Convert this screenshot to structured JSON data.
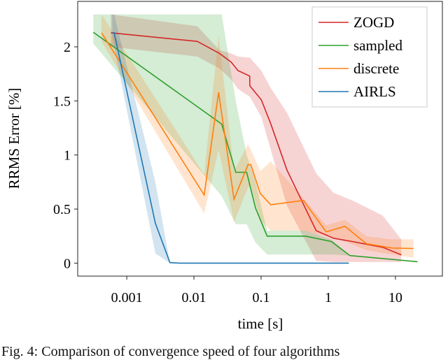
{
  "chart_data": {
    "type": "line",
    "title": "",
    "xlabel": "time [s]",
    "ylabel": "RRMS Error [%]",
    "xscale": "log",
    "xlim": [
      0.000186,
      50
    ],
    "ylim": [
      -0.12,
      2.42
    ],
    "xticks": [
      0.001,
      0.01,
      0.1,
      1,
      10
    ],
    "xtick_labels": [
      "0.001",
      "0.01",
      "0.1",
      "1",
      "10"
    ],
    "yticks": [
      0,
      0.5,
      1,
      1.5,
      2
    ],
    "ytick_labels": [
      "0",
      "0.5",
      "1",
      "1.5",
      "2"
    ],
    "grid": false,
    "legend_position": "top-right",
    "series": [
      {
        "name": "ZOGD",
        "color": "#d62728",
        "x": [
          0.00058,
          0.0112,
          0.0239,
          0.0356,
          0.0453,
          0.0676,
          0.068,
          0.1007,
          0.139,
          0.243,
          0.66,
          1.2,
          2.28,
          6.45,
          12.2
        ],
        "y": [
          2.13,
          2.05,
          1.94,
          1.86,
          1.78,
          1.73,
          1.64,
          1.51,
          1.29,
          0.86,
          0.3,
          0.23,
          0.2,
          0.146,
          0.077
        ],
        "lo": [
          2.0,
          1.91,
          1.8,
          1.7,
          1.61,
          1.54,
          1.54,
          1.35,
          1.05,
          0.53,
          0.02,
          0.01,
          0.01,
          0.01,
          0.01
        ],
        "hi": [
          2.3,
          2.19,
          1.97,
          1.94,
          1.91,
          1.9,
          1.9,
          1.78,
          1.62,
          1.39,
          0.83,
          0.65,
          0.58,
          0.44,
          0.22
        ]
      },
      {
        "name": "sampled",
        "color": "#2ca02c",
        "x": [
          0.000318,
          0.0259,
          0.0419,
          0.061,
          0.0826,
          0.123,
          0.46,
          1.11,
          2.1,
          21.4
        ],
        "y": [
          2.135,
          1.286,
          0.84,
          0.84,
          0.51,
          0.25,
          0.25,
          0.2,
          0.07,
          0.013
        ],
        "lo": [
          2.03,
          0.62,
          0.36,
          0.36,
          0.19,
          0.08,
          0.08,
          0.08,
          0.07,
          0.013
        ],
        "hi": [
          2.3,
          2.3,
          1.5,
          1.0,
          0.75,
          0.3,
          0.3,
          0.22,
          0.07,
          0.013
        ]
      },
      {
        "name": "discrete",
        "color": "#ff7f0e",
        "x": [
          0.000422,
          0.0142,
          0.0233,
          0.0395,
          0.0638,
          0.0703,
          0.0968,
          0.139,
          0.426,
          0.93,
          1.77,
          3.68,
          8.87,
          18.5
        ],
        "y": [
          2.13,
          0.63,
          1.58,
          0.59,
          0.91,
          0.91,
          0.645,
          0.54,
          0.58,
          0.29,
          0.34,
          0.18,
          0.14,
          0.135
        ],
        "lo": [
          2.05,
          0.46,
          1.05,
          0.38,
          0.7,
          0.72,
          0.4,
          0.3,
          0.3,
          0.25,
          0.2,
          0.12,
          0.08,
          0.05
        ],
        "hi": [
          2.3,
          0.82,
          2.1,
          0.85,
          1.1,
          1.05,
          0.85,
          0.94,
          0.6,
          0.35,
          0.4,
          0.25,
          0.22,
          0.22
        ]
      },
      {
        "name": "AIRLS",
        "color": "#1f77b4",
        "x": [
          0.00061,
          0.00065,
          0.00266,
          0.0044,
          0.0061,
          2.02
        ],
        "y": [
          2.13,
          2.13,
          0.37,
          0.005,
          0.0,
          0.0
        ],
        "lo": [
          2.1,
          2.0,
          0.09,
          0.0,
          0.0,
          0.0
        ],
        "hi": [
          2.3,
          2.3,
          0.75,
          0.0,
          0.0,
          0.0
        ]
      }
    ]
  },
  "caption": "Fig. 4: Comparison of convergence speed of four algorithms"
}
